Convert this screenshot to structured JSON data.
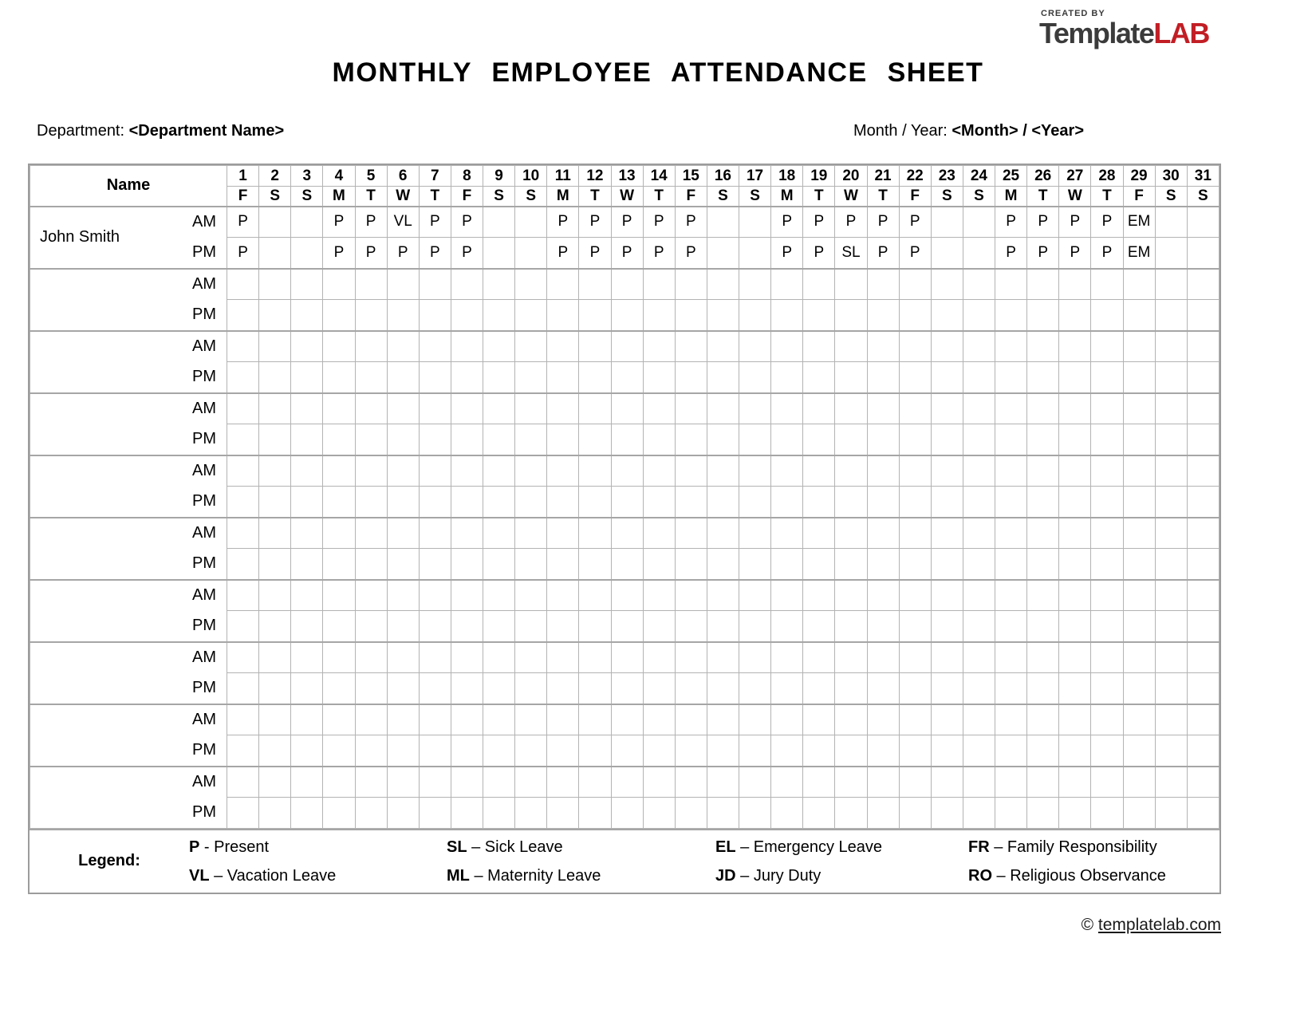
{
  "logo": {
    "created_by": "CREATED BY",
    "brand_dark": "Template",
    "brand_red": "LAB"
  },
  "title": "MONTHLY EMPLOYEE ATTENDANCE SHEET",
  "meta": {
    "department_label": "Department:",
    "department_value": "<Department Name>",
    "month_year_label": "Month / Year:",
    "month_year_value": "<Month> / <Year>"
  },
  "table": {
    "name_header": "Name",
    "am_label": "AM",
    "pm_label": "PM",
    "days": [
      "1",
      "2",
      "3",
      "4",
      "5",
      "6",
      "7",
      "8",
      "9",
      "10",
      "11",
      "12",
      "13",
      "14",
      "15",
      "16",
      "17",
      "18",
      "19",
      "20",
      "21",
      "22",
      "23",
      "24",
      "25",
      "26",
      "27",
      "28",
      "29",
      "30",
      "31"
    ],
    "day_letters": [
      "F",
      "S",
      "S",
      "M",
      "T",
      "W",
      "T",
      "F",
      "S",
      "S",
      "M",
      "T",
      "W",
      "T",
      "F",
      "S",
      "S",
      "M",
      "T",
      "W",
      "T",
      "F",
      "S",
      "S",
      "M",
      "T",
      "W",
      "T",
      "F",
      "S",
      "S"
    ],
    "employees": [
      {
        "name": "John Smith",
        "am": [
          "P",
          "",
          "",
          "P",
          "P",
          "VL",
          "P",
          "P",
          "",
          "",
          "P",
          "P",
          "P",
          "P",
          "P",
          "",
          "",
          "P",
          "P",
          "P",
          "P",
          "P",
          "",
          "",
          "P",
          "P",
          "P",
          "P",
          "EM",
          "",
          ""
        ],
        "pm": [
          "P",
          "",
          "",
          "P",
          "P",
          "P",
          "P",
          "P",
          "",
          "",
          "P",
          "P",
          "P",
          "P",
          "P",
          "",
          "",
          "P",
          "P",
          "SL",
          "P",
          "P",
          "",
          "",
          "P",
          "P",
          "P",
          "P",
          "EM",
          "",
          ""
        ]
      },
      {
        "name": "",
        "am": [],
        "pm": []
      },
      {
        "name": "",
        "am": [],
        "pm": []
      },
      {
        "name": "",
        "am": [],
        "pm": []
      },
      {
        "name": "",
        "am": [],
        "pm": []
      },
      {
        "name": "",
        "am": [],
        "pm": []
      },
      {
        "name": "",
        "am": [],
        "pm": []
      },
      {
        "name": "",
        "am": [],
        "pm": []
      },
      {
        "name": "",
        "am": [],
        "pm": []
      },
      {
        "name": "",
        "am": [],
        "pm": []
      }
    ]
  },
  "legend": {
    "label": "Legend:",
    "items": [
      {
        "code": "P",
        "sep": "-",
        "text": "Present"
      },
      {
        "code": "SL",
        "sep": "–",
        "text": "Sick Leave"
      },
      {
        "code": "EL",
        "sep": "–",
        "text": "Emergency Leave"
      },
      {
        "code": "FR",
        "sep": "–",
        "text": "Family Responsibility"
      },
      {
        "code": "VL",
        "sep": "–",
        "text": "Vacation Leave"
      },
      {
        "code": "ML",
        "sep": "–",
        "text": "Maternity Leave"
      },
      {
        "code": "JD",
        "sep": "–",
        "text": "Jury Duty"
      },
      {
        "code": "RO",
        "sep": "–",
        "text": "Religious Observance"
      }
    ]
  },
  "footer": {
    "copyright": "©",
    "link": "templatelab.com"
  },
  "colors": {
    "brand_red": "#c21e25",
    "brand_dark": "#3b3b3b",
    "border": "#b3b3b3",
    "border_strong": "#a6a6a6"
  }
}
